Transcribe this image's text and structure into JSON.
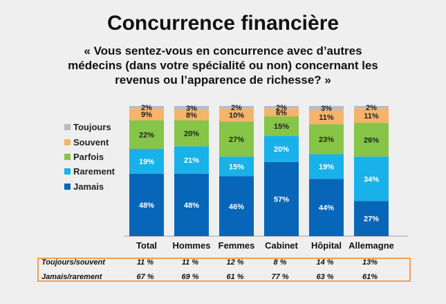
{
  "title": "Concurrence financière",
  "subtitle": "« Vous sentez-vous en concurrence avec d’autres médecins (dans votre spécialité ou non) concernant les revenus ou l’apparence de richesse? »",
  "colors": {
    "Jamais": "#0866b8",
    "Rarement": "#18b1ea",
    "Parfois": "#86c547",
    "Souvent": "#f6b36a",
    "Toujours": "#b8bcc4"
  },
  "chart_data": {
    "type": "bar",
    "stacked": true,
    "categories": [
      "Total",
      "Hommes",
      "Femmes",
      "Cabinet",
      "Hôpital",
      "Allemagne"
    ],
    "series": [
      {
        "name": "Jamais",
        "values": [
          48,
          48,
          46,
          57,
          44,
          27
        ]
      },
      {
        "name": "Rarement",
        "values": [
          19,
          21,
          15,
          20,
          19,
          34
        ]
      },
      {
        "name": "Parfois",
        "values": [
          22,
          20,
          27,
          15,
          23,
          26
        ]
      },
      {
        "name": "Souvent",
        "values": [
          9,
          8,
          10,
          6,
          11,
          11
        ]
      },
      {
        "name": "Toujours",
        "values": [
          2,
          3,
          2,
          2,
          3,
          2
        ]
      }
    ],
    "value_format": "%",
    "legend_position": "left",
    "legend_order": [
      "Toujours",
      "Souvent",
      "Parfois",
      "Rarement",
      "Jamais"
    ],
    "grid": false
  },
  "summary": {
    "rows": [
      {
        "label": "Toujours/souvent",
        "values": [
          "11 %",
          "11 %",
          "12 %",
          "8 %",
          "14 %",
          "13%"
        ]
      },
      {
        "label": "Jamais/rarement",
        "values": [
          "67 %",
          "69 %",
          "61 %",
          "77 %",
          "63 %",
          "61%"
        ]
      }
    ]
  }
}
